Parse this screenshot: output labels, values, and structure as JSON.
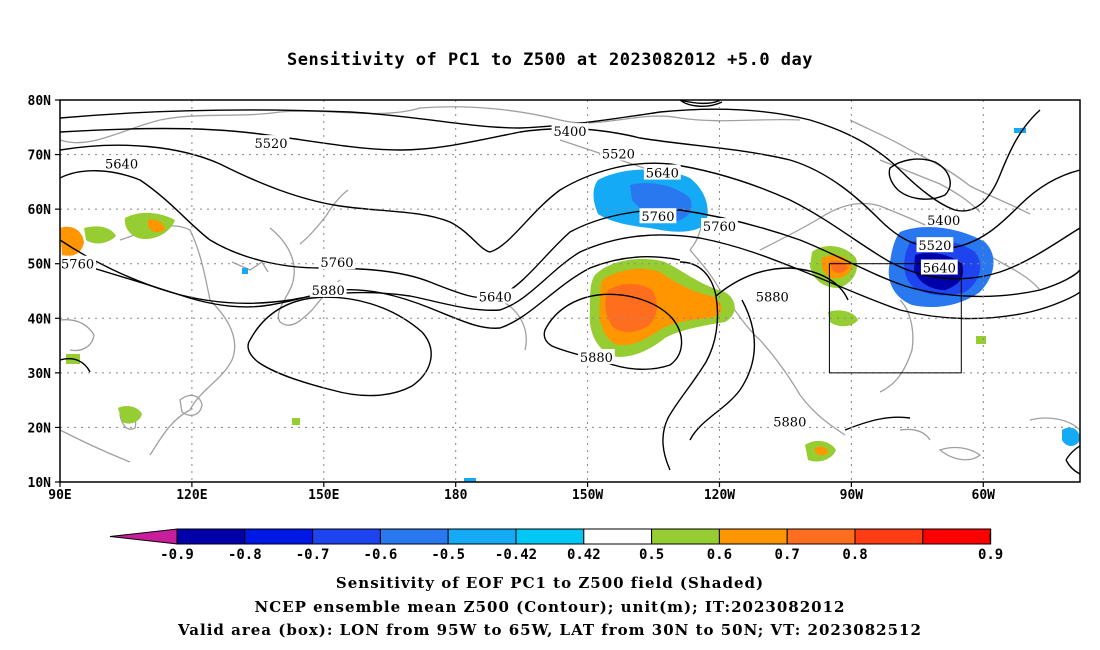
{
  "title": "Sensitivity of PC1 to Z500 at 2023082012 +5.0 day",
  "map": {
    "lon_labels": [
      "90E",
      "120E",
      "150E",
      "180",
      "150W",
      "120W",
      "90W",
      "60W"
    ],
    "lon_values": [
      90,
      120,
      150,
      180,
      210,
      240,
      270,
      300
    ],
    "lat_labels": [
      "80N",
      "70N",
      "60N",
      "50N",
      "40N",
      "30N",
      "20N",
      "10N"
    ],
    "lat_values": [
      80,
      70,
      60,
      50,
      40,
      30,
      20,
      10
    ],
    "lon_range": [
      90,
      322
    ],
    "lat_range": [
      10,
      80
    ],
    "grid": "dotted",
    "contour_labels": [
      {
        "text": "5400",
        "lon": 206,
        "lat": 74.3
      },
      {
        "text": "5520",
        "lon": 138,
        "lat": 72.1
      },
      {
        "text": "5520",
        "lon": 217,
        "lat": 70.2
      },
      {
        "text": "5640",
        "lon": 104,
        "lat": 68.4
      },
      {
        "text": "5640",
        "lon": 227,
        "lat": 66.7
      },
      {
        "text": "5760",
        "lon": 226,
        "lat": 58.7
      },
      {
        "text": "5760",
        "lon": 240,
        "lat": 56.9
      },
      {
        "text": "5760",
        "lon": 94,
        "lat": 50.0
      },
      {
        "text": "5760",
        "lon": 153,
        "lat": 50.3
      },
      {
        "text": "5880",
        "lon": 151,
        "lat": 45.2
      },
      {
        "text": "5640",
        "lon": 189,
        "lat": 44.0
      },
      {
        "text": "5880",
        "lon": 252,
        "lat": 44.0
      },
      {
        "text": "5880",
        "lon": 212,
        "lat": 32.9
      },
      {
        "text": "5880",
        "lon": 256,
        "lat": 21.1
      },
      {
        "text": "5400",
        "lon": 291,
        "lat": 58.0
      },
      {
        "text": "5520",
        "lon": 289,
        "lat": 53.4
      },
      {
        "text": "5640",
        "lon": 290,
        "lat": 49.3
      }
    ],
    "valid_box": {
      "lon_west": 265,
      "lon_east": 295,
      "lat_south": 30,
      "lat_north": 50
    }
  },
  "colorbar": {
    "labels": [
      "-0.9",
      "-0.8",
      "-0.7",
      "-0.6",
      "-0.5",
      "-0.42",
      "0.42",
      "0.5",
      "0.6",
      "0.7",
      "0.8",
      "0.9"
    ],
    "colors": [
      "#0000a8",
      "#0018e6",
      "#1e44f0",
      "#2a78f0",
      "#14aaf5",
      "#00c8f5",
      "#ffffff",
      "#96cd32",
      "#ff9600",
      "#ff6e1e",
      "#ff3c14",
      "#ff0000"
    ],
    "low_end_color": "#c81e9b",
    "high_end_color": "#f5a0c8"
  },
  "footer": {
    "line1": "Sensitivity of EOF PC1 to Z500 field (Shaded)",
    "line2": "NCEP ensemble mean Z500 (Contour); unit(m); IT:2023082012",
    "line3": "Valid area (box): LON from 95W to 65W, LAT from 30N to 50N; VT: 2023082512"
  }
}
